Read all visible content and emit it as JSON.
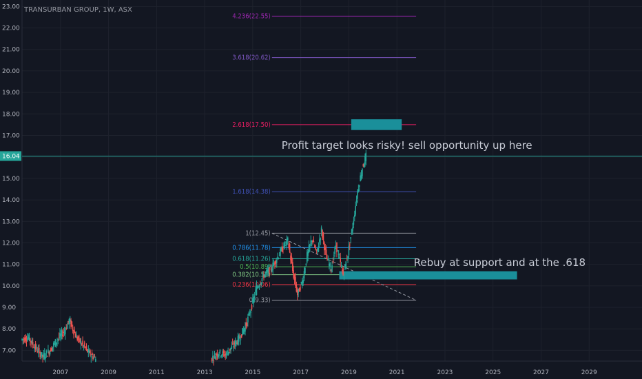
{
  "chart_data": {
    "type": "candlestick",
    "title": "TRANSURBAN GROUP, 1W, ASX",
    "current_price": "16.04",
    "y_range": [
      6.5,
      23.3
    ],
    "x_range": [
      2005.4,
      2031.2
    ],
    "y_ticks": [
      "7.00",
      "8.00",
      "9.00",
      "10.00",
      "11.00",
      "12.00",
      "13.00",
      "14.00",
      "15.00",
      "16.00",
      "17.00",
      "18.00",
      "19.00",
      "20.00",
      "21.00",
      "22.00",
      "23.00"
    ],
    "x_ticks": [
      "2007",
      "2009",
      "2011",
      "2013",
      "2015",
      "2017",
      "2019",
      "2021",
      "2023",
      "2025",
      "2027",
      "2029"
    ],
    "price_path": [
      [
        2005.4,
        7.5
      ],
      [
        2005.7,
        7.6
      ],
      [
        2006.0,
        7.1
      ],
      [
        2006.3,
        6.7
      ],
      [
        2006.6,
        7.0
      ],
      [
        2006.9,
        7.5
      ],
      [
        2007.2,
        7.9
      ],
      [
        2007.4,
        8.4
      ],
      [
        2007.7,
        7.6
      ],
      [
        2008.0,
        7.2
      ],
      [
        2008.2,
        6.9
      ],
      [
        2008.5,
        6.6
      ],
      [
        2013.3,
        6.6
      ],
      [
        2013.6,
        6.9
      ],
      [
        2013.9,
        6.8
      ],
      [
        2014.2,
        7.2
      ],
      [
        2014.5,
        7.6
      ],
      [
        2014.8,
        8.3
      ],
      [
        2015.0,
        9.1
      ],
      [
        2015.2,
        9.9
      ],
      [
        2015.5,
        10.5
      ],
      [
        2015.8,
        10.8
      ],
      [
        2016.0,
        11.2
      ],
      [
        2016.3,
        11.8
      ],
      [
        2016.5,
        12.1
      ],
      [
        2016.7,
        10.7
      ],
      [
        2016.9,
        9.6
      ],
      [
        2017.1,
        10.2
      ],
      [
        2017.3,
        11.4
      ],
      [
        2017.5,
        12.2
      ],
      [
        2017.7,
        11.5
      ],
      [
        2017.9,
        12.6
      ],
      [
        2018.1,
        11.3
      ],
      [
        2018.3,
        10.8
      ],
      [
        2018.5,
        11.9
      ],
      [
        2018.8,
        10.5
      ],
      [
        2019.0,
        11.5
      ],
      [
        2019.2,
        12.8
      ],
      [
        2019.4,
        14.4
      ],
      [
        2019.6,
        15.5
      ],
      [
        2019.75,
        16.04
      ]
    ],
    "fibonacci": [
      {
        "label": "4.236(22.55)",
        "value": 22.55,
        "color": "#9c27b0"
      },
      {
        "label": "3.618(20.62)",
        "value": 20.62,
        "color": "#7e57c2"
      },
      {
        "label": "2.618(17.50)",
        "value": 17.5,
        "color": "#e91e63"
      },
      {
        "label": "1.618(14.38)",
        "value": 14.38,
        "color": "#3f51b5"
      },
      {
        "label": "1(12.45)",
        "value": 12.45,
        "color": "#9598a1"
      },
      {
        "label": "0.786(11.78)",
        "value": 11.78,
        "color": "#2196f3"
      },
      {
        "label": "0.618(11.26)",
        "value": 11.26,
        "color": "#26a69a"
      },
      {
        "label": "0.5(10.89)",
        "value": 10.89,
        "color": "#4caf50"
      },
      {
        "label": "0.382(10.52)",
        "value": 10.52,
        "color": "#81c784"
      },
      {
        "label": "0.236(10.06)",
        "value": 10.06,
        "color": "#f23645"
      },
      {
        "label": "0(9.33)",
        "value": 9.33,
        "color": "#9598a1"
      }
    ],
    "annotations": [
      {
        "text": "Profit target looks risky! sell opportunity up here"
      },
      {
        "text": "Rebuy at support and at the .618"
      }
    ],
    "colors": {
      "up": "#26a69a",
      "down": "#ef5350",
      "highlight": "#1a8f9a",
      "price_line": "#26a69a"
    }
  }
}
